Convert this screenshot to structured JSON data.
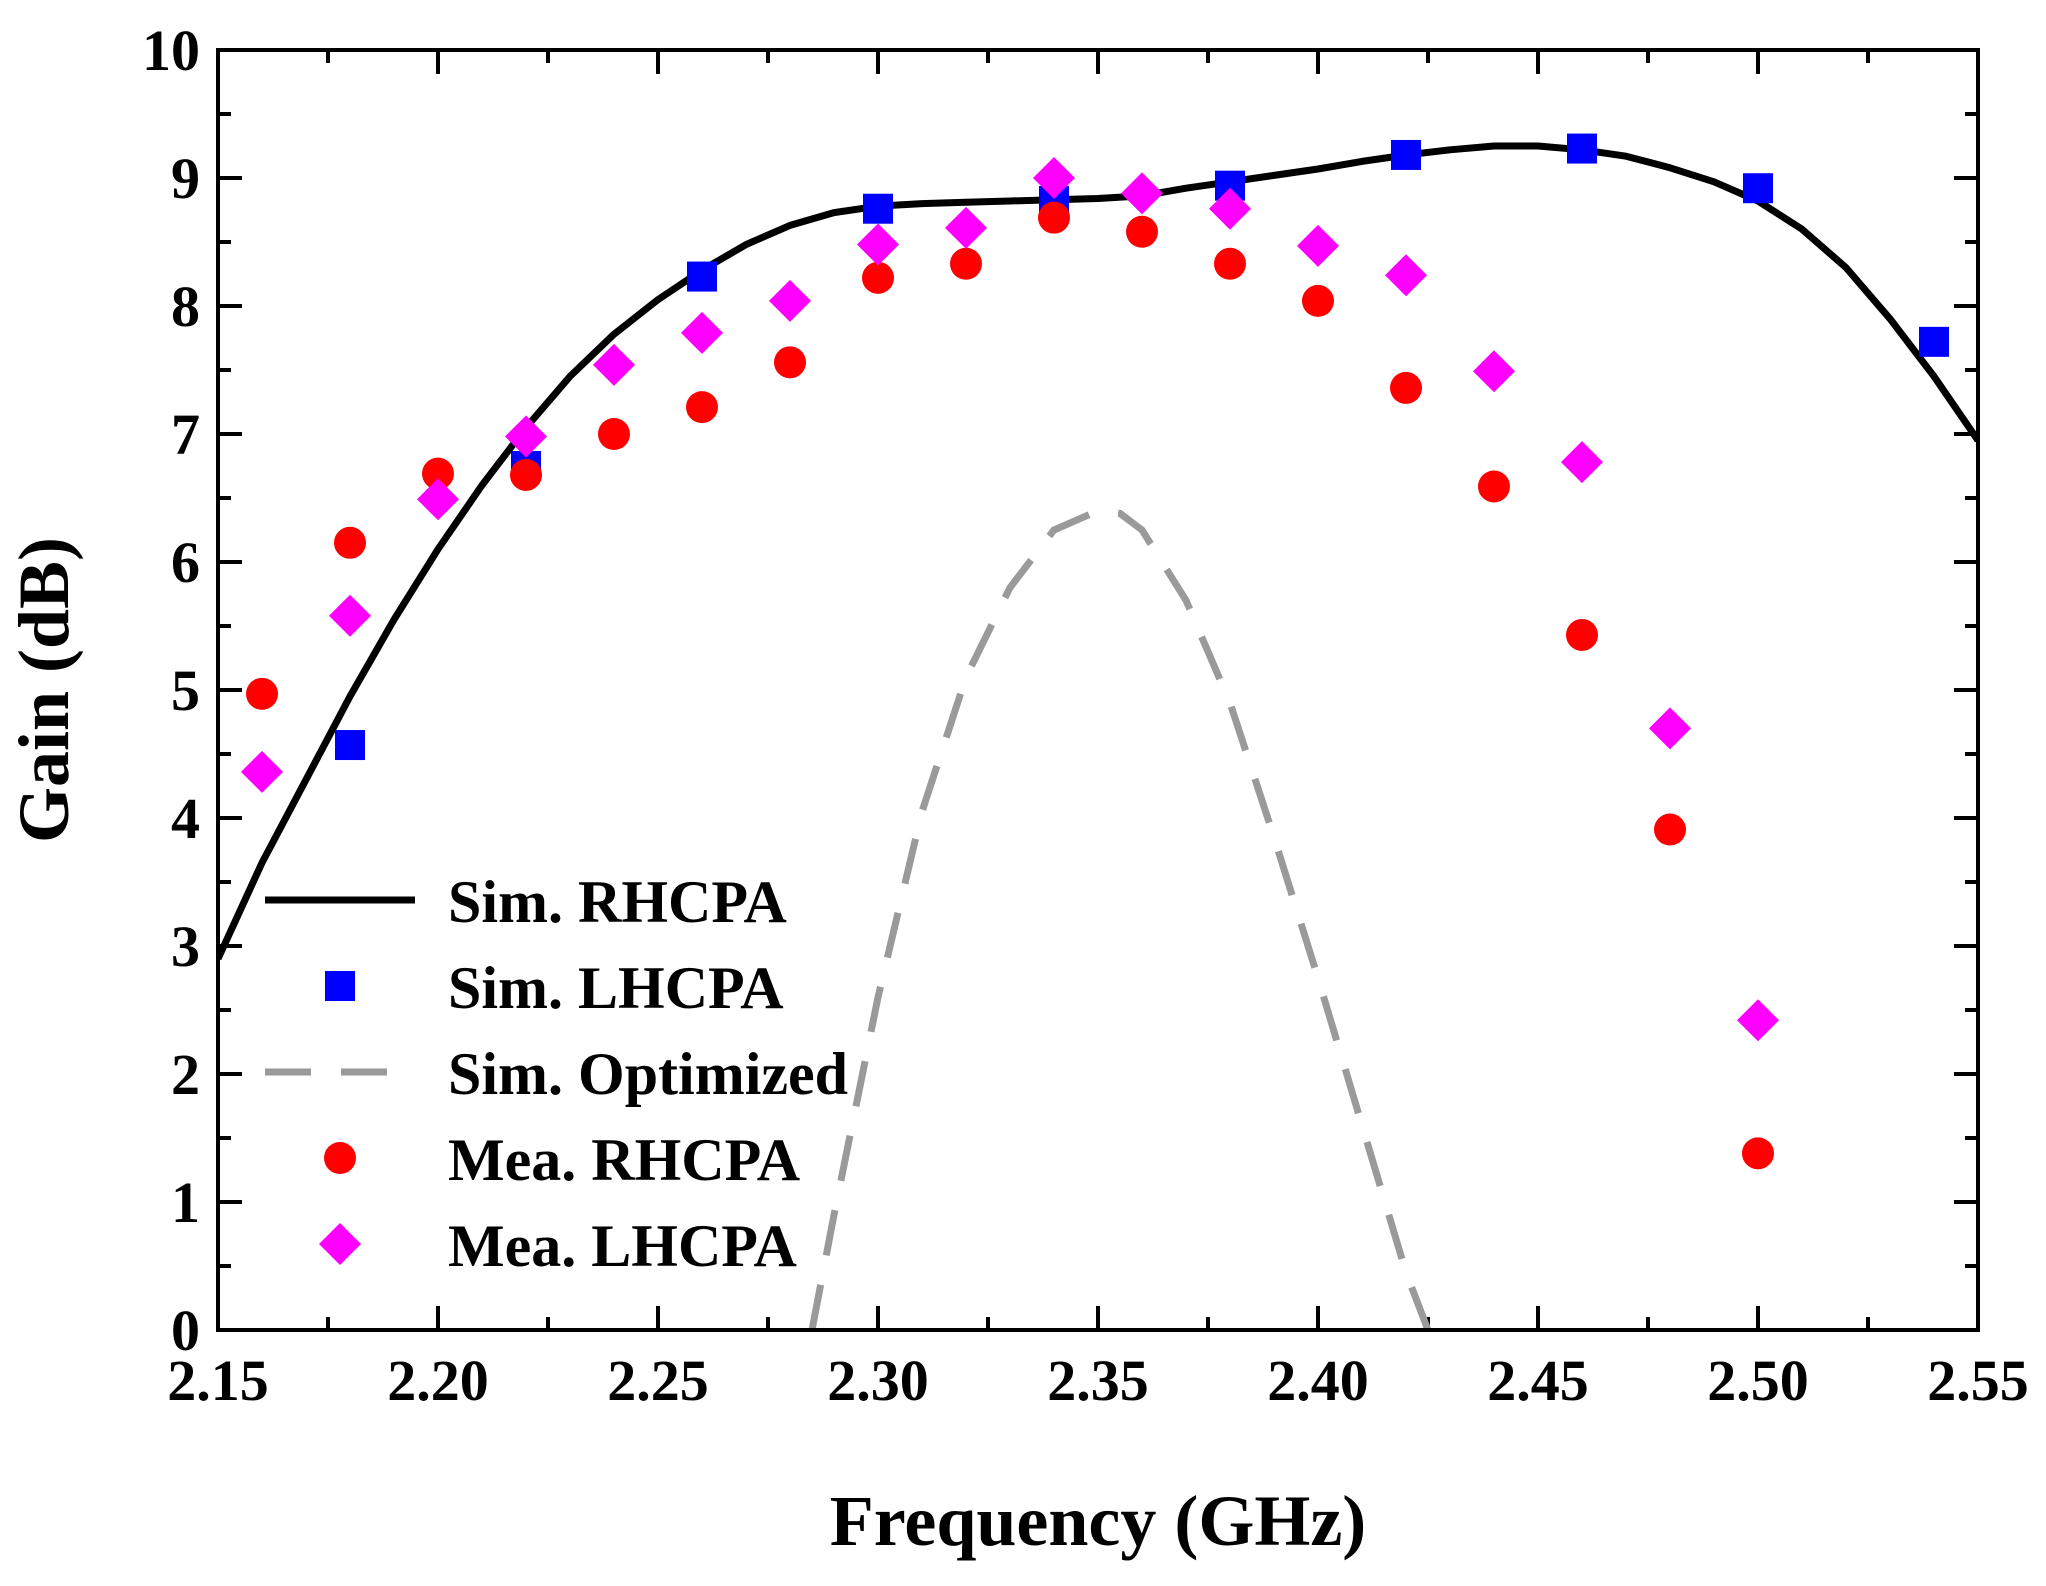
{
  "chart_data": {
    "type": "line",
    "xlabel": "Frequency (GHz)",
    "ylabel": "Gain (dB)",
    "xlim": [
      2.15,
      2.55
    ],
    "ylim": [
      0,
      10
    ],
    "x_ticks": [
      "2.15",
      "2.20",
      "2.25",
      "2.30",
      "2.35",
      "2.40",
      "2.45",
      "2.50",
      "2.55"
    ],
    "y_ticks": [
      "0",
      "1",
      "2",
      "3",
      "4",
      "5",
      "6",
      "7",
      "8",
      "9",
      "10"
    ],
    "grid": false,
    "legend_position": "bottom-left",
    "series": [
      {
        "name": "Sim. RHCPA",
        "style": "solid-line",
        "color": "#000000",
        "x": [
          2.15,
          2.16,
          2.17,
          2.18,
          2.19,
          2.2,
          2.21,
          2.22,
          2.23,
          2.24,
          2.25,
          2.26,
          2.27,
          2.28,
          2.29,
          2.3,
          2.31,
          2.32,
          2.33,
          2.34,
          2.35,
          2.36,
          2.37,
          2.38,
          2.39,
          2.4,
          2.41,
          2.42,
          2.43,
          2.44,
          2.45,
          2.46,
          2.47,
          2.48,
          2.49,
          2.5,
          2.51,
          2.52,
          2.53,
          2.54,
          2.55
        ],
        "y": [
          2.9,
          3.65,
          4.3,
          4.95,
          5.55,
          6.1,
          6.6,
          7.05,
          7.45,
          7.78,
          8.05,
          8.28,
          8.48,
          8.63,
          8.73,
          8.78,
          8.8,
          8.81,
          8.82,
          8.83,
          8.84,
          8.86,
          8.92,
          8.97,
          9.02,
          9.07,
          9.13,
          9.18,
          9.22,
          9.25,
          9.25,
          9.22,
          9.17,
          9.08,
          8.97,
          8.82,
          8.6,
          8.3,
          7.9,
          7.45,
          6.95
        ]
      },
      {
        "name": "Sim. LHCPA",
        "style": "square-marker",
        "color": "#0000FF",
        "x": [
          2.18,
          2.22,
          2.26,
          2.3,
          2.34,
          2.38,
          2.42,
          2.46,
          2.5,
          2.54
        ],
        "y": [
          4.57,
          6.75,
          8.23,
          8.76,
          8.82,
          8.94,
          9.18,
          9.23,
          8.92,
          7.72
        ]
      },
      {
        "name": "Sim. Optimized",
        "style": "dashed-line",
        "color": "#9A9A9A",
        "x": [
          2.285,
          2.29,
          2.3,
          2.31,
          2.32,
          2.33,
          2.34,
          2.35,
          2.355,
          2.36,
          2.37,
          2.38,
          2.39,
          2.4,
          2.41,
          2.42,
          2.425
        ],
        "y": [
          0.0,
          0.9,
          2.6,
          4.05,
          5.1,
          5.8,
          6.25,
          6.4,
          6.38,
          6.25,
          5.7,
          4.9,
          3.85,
          2.75,
          1.6,
          0.45,
          0.0
        ]
      },
      {
        "name": "Mea. RHCPA",
        "style": "circle-marker",
        "color": "#FF0000",
        "x": [
          2.16,
          2.18,
          2.2,
          2.22,
          2.24,
          2.26,
          2.28,
          2.3,
          2.32,
          2.34,
          2.36,
          2.38,
          2.4,
          2.42,
          2.44,
          2.46,
          2.48,
          2.5
        ],
        "y": [
          4.97,
          6.15,
          6.69,
          6.68,
          7.0,
          7.21,
          7.56,
          8.22,
          8.33,
          8.69,
          8.58,
          8.33,
          8.04,
          7.36,
          6.59,
          5.43,
          3.91,
          1.38
        ]
      },
      {
        "name": "Mea. LHCPA",
        "style": "diamond-marker",
        "color": "#FF00FF",
        "x": [
          2.16,
          2.18,
          2.2,
          2.22,
          2.24,
          2.26,
          2.28,
          2.3,
          2.32,
          2.34,
          2.36,
          2.38,
          2.4,
          2.42,
          2.44,
          2.46,
          2.48,
          2.5
        ],
        "y": [
          4.36,
          5.58,
          6.49,
          6.98,
          7.54,
          7.79,
          8.04,
          8.48,
          8.61,
          9.0,
          8.88,
          8.76,
          8.47,
          8.24,
          7.49,
          6.78,
          4.7,
          2.42
        ]
      }
    ]
  }
}
